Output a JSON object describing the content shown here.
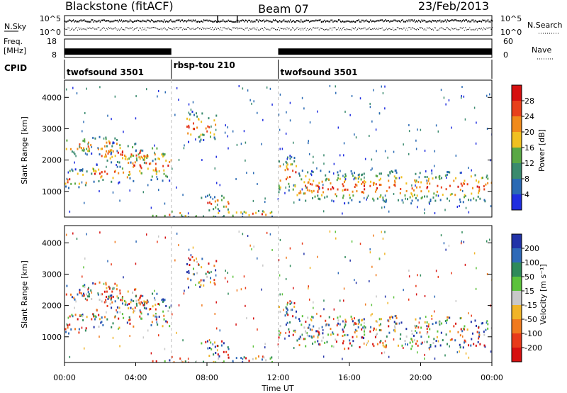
{
  "header": {
    "station": "Blackstone (fitACF)",
    "beam": "Beam 07",
    "date": "23/Feb/2013"
  },
  "strips": {
    "nsky_label": "N.Sky",
    "nsky_tick_high": "10^5",
    "nsky_tick_low": "10^0",
    "nsearch_label": "N.Search",
    "freq_label_line1": "Freq.",
    "freq_label_line2": "[MHz]",
    "freq_tick_high": "18",
    "freq_tick_low": "8",
    "nave_label": "Nave",
    "nave_tick_high": "60",
    "nave_tick_low": "0",
    "cpid_label": "CPID"
  },
  "chart_data": {
    "type": "heatmap",
    "xlabel": "Time UT",
    "ylabel": "Slant Range [km]",
    "x_ticks": [
      "00:00",
      "04:00",
      "08:00",
      "12:00",
      "16:00",
      "20:00",
      "00:00"
    ],
    "xlim_hours": [
      0,
      24
    ],
    "ylim_km": [
      180,
      4550
    ],
    "y_ticks": [
      1000,
      2000,
      3000,
      4000
    ],
    "frequency_band_mhz": [
      {
        "start_hour": 0.0,
        "end_hour": 6.0,
        "value": 10.6
      },
      {
        "start_hour": 12.0,
        "end_hour": 24.0,
        "value": 10.6
      }
    ],
    "cpid_segments": [
      {
        "start_hour": 0.0,
        "end_hour": 6.0,
        "label": "twofsound 3501"
      },
      {
        "start_hour": 6.0,
        "end_hour": 12.0,
        "label": "rbsp-tou 210"
      },
      {
        "start_hour": 12.0,
        "end_hour": 24.0,
        "label": "twofsound 3501"
      }
    ],
    "power_scale": {
      "label": "Power [dB]",
      "ticks": [
        4,
        8,
        12,
        16,
        20,
        24,
        28
      ],
      "colors": [
        "#1f2ee0",
        "#2a6ab4",
        "#3a8a6e",
        "#5aa845",
        "#f0c020",
        "#f08a1a",
        "#e8401a",
        "#d61010"
      ]
    },
    "velocity_scale": {
      "label": "Velocity [m s⁻¹]",
      "ticks": [
        "200",
        "100",
        "50",
        "15",
        "-15",
        "-50",
        "-100",
        "-200"
      ],
      "colors": [
        "#2233a8",
        "#2f6ab8",
        "#2f8a5a",
        "#5cc23c",
        "#c8c8c8",
        "#f0b428",
        "#f07a1e",
        "#e83a1a",
        "#d61010"
      ]
    },
    "echo_regions": [
      {
        "t0": 0.0,
        "t1": 1.5,
        "r0": 1100,
        "r1": 1750
      },
      {
        "t0": 1.5,
        "t1": 3.5,
        "r0": 1300,
        "r1": 1900
      },
      {
        "t0": 3.5,
        "t1": 6.0,
        "r0": 1350,
        "r1": 2400
      },
      {
        "t0": 0.0,
        "t1": 3.0,
        "r0": 2200,
        "r1": 2800
      },
      {
        "t0": 2.0,
        "t1": 5.5,
        "r0": 1900,
        "r1": 2600
      },
      {
        "t0": 6.8,
        "t1": 8.5,
        "r0": 2600,
        "r1": 3600
      },
      {
        "t0": 7.5,
        "t1": 9.3,
        "r0": 400,
        "r1": 900
      },
      {
        "t0": 4.5,
        "t1": 12.0,
        "r0": 200,
        "r1": 420
      },
      {
        "t0": 12.0,
        "t1": 13.0,
        "r0": 900,
        "r1": 2200
      },
      {
        "t0": 13.0,
        "t1": 24.0,
        "r0": 650,
        "r1": 1700
      }
    ]
  }
}
